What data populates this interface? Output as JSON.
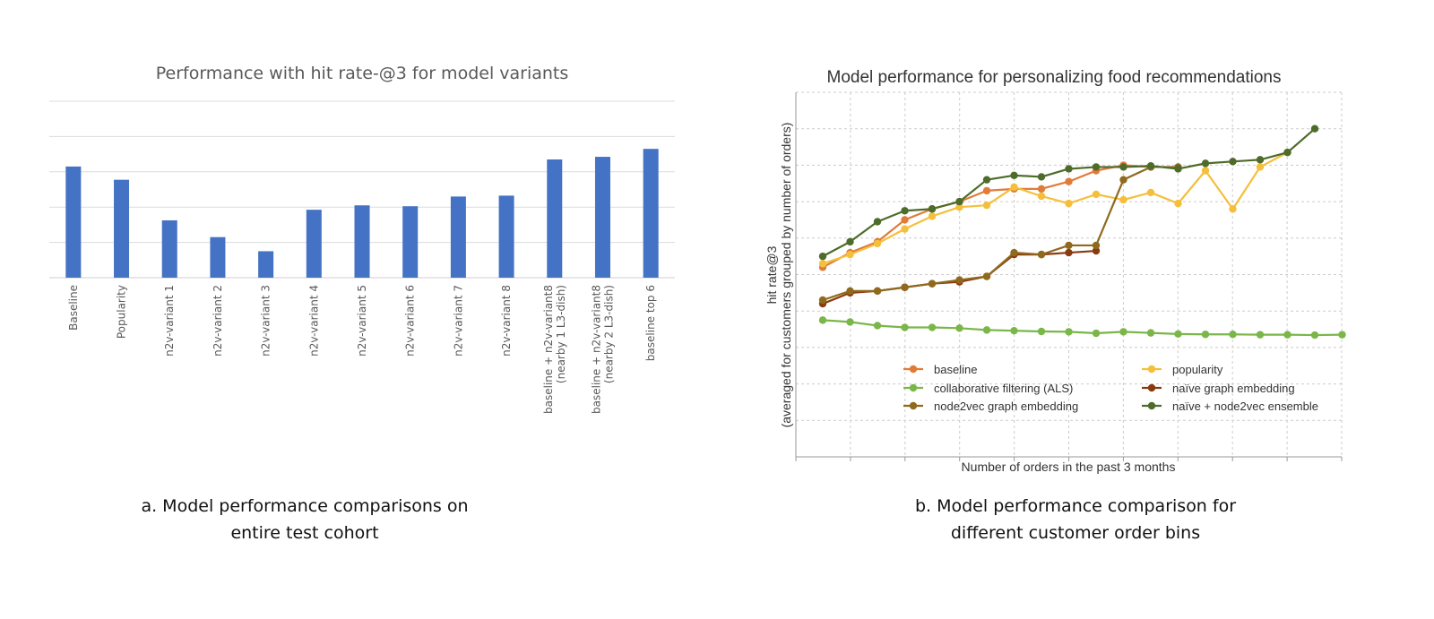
{
  "chart_data": [
    {
      "type": "bar",
      "title": "Performance with hit rate-@3 for model variants",
      "xlabel": "",
      "ylabel": "",
      "ylim": [
        0,
        1
      ],
      "grid": true,
      "gridlines": 5,
      "bar_color": "#4472c4",
      "categories": [
        [
          "Baseline"
        ],
        [
          "Popularity"
        ],
        [
          "n2v-variant 1"
        ],
        [
          "n2v-variant 2"
        ],
        [
          "n2v-variant 3"
        ],
        [
          "n2v-variant 4"
        ],
        [
          "n2v-variant 5"
        ],
        [
          "n2v-variant 6"
        ],
        [
          "n2v-variant 7"
        ],
        [
          "n2v-variant 8"
        ],
        [
          "baseline + n2v-variant8",
          "(nearby 1 L3-dish)"
        ],
        [
          "baseline + n2v-variant8",
          "(nearby 2 L3-dish)"
        ],
        [
          "baseline top 6"
        ]
      ],
      "values": [
        0.63,
        0.555,
        0.325,
        0.23,
        0.15,
        0.385,
        0.41,
        0.405,
        0.46,
        0.465,
        0.67,
        0.685,
        0.73
      ]
    },
    {
      "type": "line",
      "title": "Model performance for personalizing food recommendations",
      "xlabel": "Number of orders in the past 3 months",
      "ylabel_lines": [
        "hit rate@3",
        "(averaged for customers grouped by number of orders)"
      ],
      "ylim": [
        0,
        10
      ],
      "x_count": 20,
      "grid": true,
      "legend_position": "lower-center",
      "series": [
        {
          "name": "baseline",
          "color": "#e07b39",
          "values": [
            5.2,
            5.6,
            5.9,
            6.5,
            6.8,
            7.0,
            7.3,
            7.35,
            7.35,
            7.55,
            7.85,
            8.0,
            7.95,
            null,
            null,
            null,
            null,
            null,
            null,
            null
          ]
        },
        {
          "name": "popularity",
          "color": "#f5bf3b",
          "values": [
            5.3,
            5.55,
            5.85,
            6.25,
            6.6,
            6.85,
            6.9,
            7.4,
            7.15,
            6.95,
            7.2,
            7.05,
            7.25,
            6.95,
            7.85,
            6.8,
            7.95,
            8.35,
            null,
            null
          ]
        },
        {
          "name": "collaborative filtering (ALS)",
          "color": "#7ab648",
          "values": [
            3.75,
            3.7,
            3.6,
            3.55,
            3.55,
            3.53,
            3.48,
            3.46,
            3.44,
            3.43,
            3.39,
            3.43,
            3.4,
            3.37,
            3.36,
            3.36,
            3.35,
            3.35,
            3.34,
            3.35
          ]
        },
        {
          "name": "naïve graph embedding",
          "color": "#8b3a10",
          "values": [
            4.2,
            4.5,
            4.55,
            4.65,
            4.75,
            4.8,
            4.95,
            5.55,
            5.55,
            5.6,
            5.65,
            null,
            null,
            null,
            null,
            null,
            null,
            null,
            null,
            null
          ]
        },
        {
          "name": "node2vec graph embedding",
          "color": "#8f6a1e",
          "values": [
            4.3,
            4.55,
            4.55,
            4.65,
            4.75,
            4.85,
            4.95,
            5.6,
            5.55,
            5.8,
            5.8,
            7.6,
            7.95,
            7.95,
            null,
            null,
            null,
            null,
            null,
            null
          ]
        },
        {
          "name": "naïve + node2vec ensemble",
          "color": "#4e6b2a",
          "values": [
            5.5,
            5.9,
            6.45,
            6.75,
            6.8,
            7.0,
            7.6,
            7.72,
            7.68,
            7.9,
            7.95,
            7.95,
            7.98,
            7.9,
            8.05,
            8.1,
            8.15,
            8.35,
            9.0,
            null
          ]
        }
      ]
    }
  ],
  "captions": {
    "a": [
      "a. Model performance comparisons on",
      "entire test cohort"
    ],
    "b": [
      "b. Model performance comparison for",
      "different customer order bins"
    ]
  }
}
